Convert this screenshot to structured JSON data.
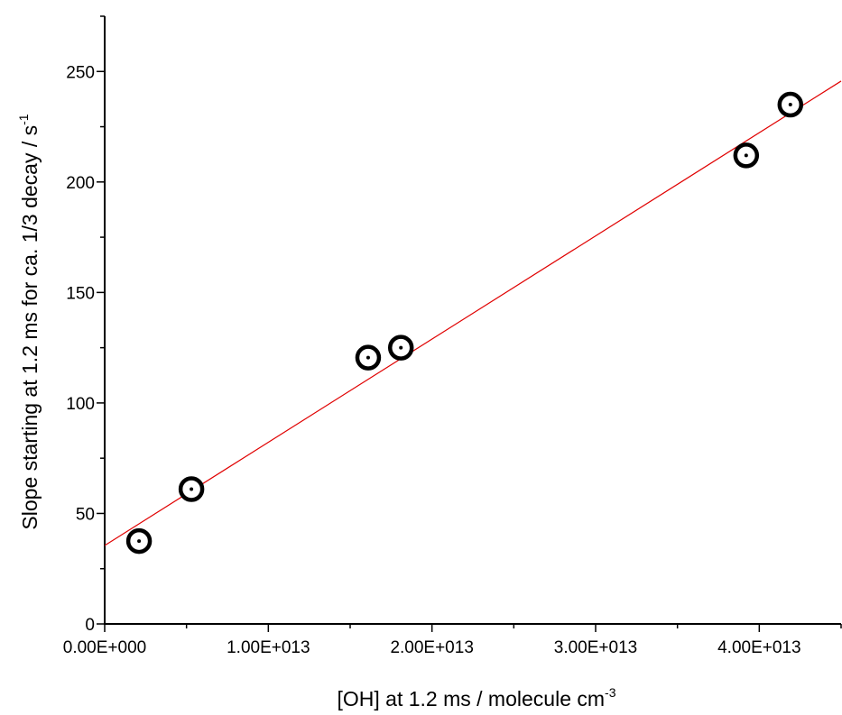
{
  "chart_data": {
    "type": "scatter",
    "title": "",
    "xlabel": {
      "main": "[OH] at 1.2 ms     /   molecule cm",
      "superscript": "-3"
    },
    "ylabel": {
      "main": "Slope starting at 1.2 ms for ca. 1/3 decay     /     s",
      "superscript": "-1"
    },
    "xlim": [
      0,
      45000000000000.0
    ],
    "ylim": [
      0,
      275
    ],
    "x_ticks": [
      {
        "value": 0,
        "label": "0.00E+000"
      },
      {
        "value": 10000000000000.0,
        "label": "1.00E+013"
      },
      {
        "value": 20000000000000.0,
        "label": "2.00E+013"
      },
      {
        "value": 30000000000000.0,
        "label": "3.00E+013"
      },
      {
        "value": 40000000000000.0,
        "label": "4.00E+013"
      }
    ],
    "y_ticks": [
      {
        "value": 0,
        "label": "0"
      },
      {
        "value": 50,
        "label": "50"
      },
      {
        "value": 100,
        "label": "100"
      },
      {
        "value": 150,
        "label": "150"
      },
      {
        "value": 200,
        "label": "200"
      },
      {
        "value": 250,
        "label": "250"
      }
    ],
    "points": [
      {
        "x": 2100000000000.0,
        "y": 37.5
      },
      {
        "x": 5300000000000.0,
        "y": 61
      },
      {
        "x": 16100000000000.0,
        "y": 120.5
      },
      {
        "x": 18100000000000.0,
        "y": 125
      },
      {
        "x": 39200000000000.0,
        "y": 212
      },
      {
        "x": 41900000000000.0,
        "y": 235
      }
    ],
    "fit_line": {
      "intercept": 35.5,
      "slope": 4.67e-12
    },
    "colors": {
      "points": "#000000",
      "fit_line": "#e00000",
      "axes": "#000000"
    },
    "grid": false,
    "legend": "none"
  }
}
